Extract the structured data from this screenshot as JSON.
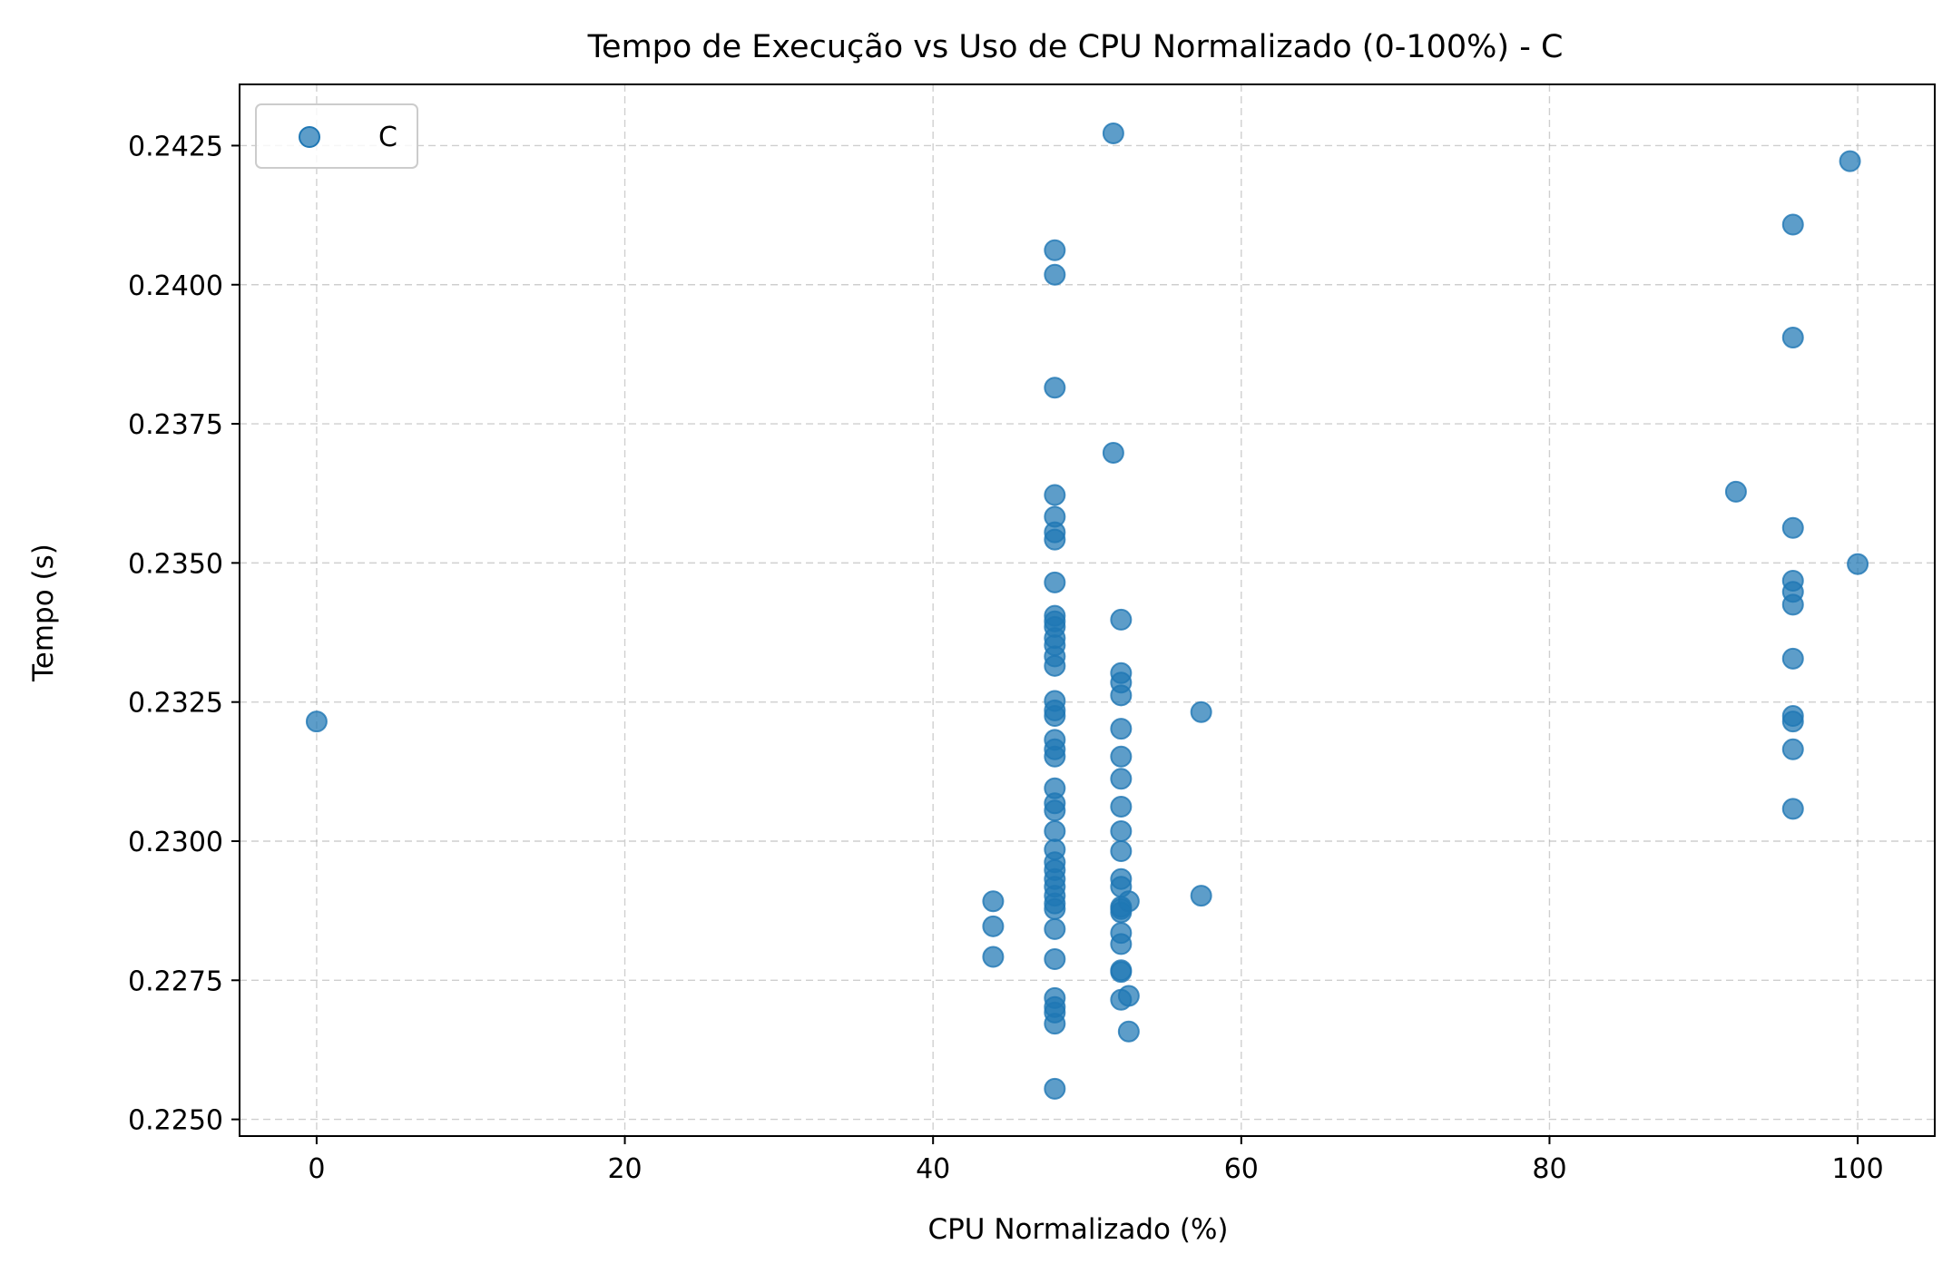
{
  "chart_data": {
    "type": "scatter",
    "title": "Tempo de Execução vs Uso de CPU Normalizado (0-100%) - C",
    "xlabel": "CPU Normalizado (%)",
    "ylabel": "Tempo (s)",
    "xlim": [
      -5,
      105
    ],
    "ylim": [
      0.2247,
      0.2436
    ],
    "xticks": [
      0,
      20,
      40,
      60,
      80,
      100
    ],
    "xtick_labels": [
      "0",
      "20",
      "40",
      "60",
      "80",
      "100"
    ],
    "yticks": [
      0.225,
      0.2275,
      0.23,
      0.2325,
      0.235,
      0.2375,
      0.24,
      0.2425
    ],
    "ytick_labels": [
      "0.2250",
      "0.2275",
      "0.2300",
      "0.2325",
      "0.2350",
      "0.2375",
      "0.2400",
      "0.2425"
    ],
    "grid": true,
    "legend_position": "upper-left",
    "series": [
      {
        "name": "C",
        "color": "#1f77b4",
        "x": [
          0,
          43.9,
          43.9,
          43.9,
          47.9,
          47.9,
          47.9,
          47.9,
          47.9,
          47.9,
          47.9,
          47.9,
          47.9,
          47.9,
          47.9,
          47.9,
          47.9,
          47.9,
          47.9,
          47.9,
          47.9,
          47.9,
          47.9,
          47.9,
          47.9,
          47.9,
          47.9,
          47.9,
          47.9,
          47.9,
          47.9,
          47.9,
          47.9,
          47.9,
          47.9,
          47.9,
          47.9,
          47.9,
          47.9,
          47.9,
          47.9,
          47.9,
          47.9,
          47.9,
          51.7,
          51.7,
          52.2,
          52.2,
          52.2,
          52.2,
          52.2,
          52.2,
          52.2,
          52.2,
          52.2,
          52.2,
          52.2,
          52.2,
          52.2,
          52.2,
          52.2,
          52.2,
          52.2,
          52.2,
          52.2,
          52.2,
          52.7,
          52.7,
          52.7,
          57.4,
          57.4,
          92.1,
          95.8,
          95.8,
          95.8,
          95.8,
          95.8,
          95.8,
          95.8,
          95.8,
          95.8,
          95.8,
          95.8,
          99.5,
          100
        ],
        "y": [
          0.23215,
          0.22892,
          0.22847,
          0.22792,
          0.24062,
          0.24018,
          0.23815,
          0.23622,
          0.23583,
          0.23555,
          0.23542,
          0.23465,
          0.23405,
          0.23395,
          0.23385,
          0.23365,
          0.23352,
          0.23332,
          0.23315,
          0.23252,
          0.23235,
          0.23225,
          0.23182,
          0.23165,
          0.23152,
          0.23095,
          0.23068,
          0.23055,
          0.23018,
          0.22985,
          0.22962,
          0.22948,
          0.22932,
          0.22918,
          0.22902,
          0.22888,
          0.22878,
          0.22842,
          0.22788,
          0.22718,
          0.22702,
          0.22692,
          0.22672,
          0.22555,
          0.24272,
          0.23698,
          0.23398,
          0.23302,
          0.23285,
          0.23262,
          0.23202,
          0.23152,
          0.23112,
          0.23062,
          0.23018,
          0.22982,
          0.22932,
          0.22918,
          0.22882,
          0.22872,
          0.22835,
          0.22815,
          0.22768,
          0.22765,
          0.22715,
          0.22878,
          0.22892,
          0.22722,
          0.22658,
          0.23232,
          0.22902,
          0.23628,
          0.24108,
          0.23905,
          0.23563,
          0.23468,
          0.23448,
          0.23425,
          0.23328,
          0.23225,
          0.23215,
          0.23165,
          0.23058,
          0.24222,
          0.23498
        ]
      }
    ]
  }
}
